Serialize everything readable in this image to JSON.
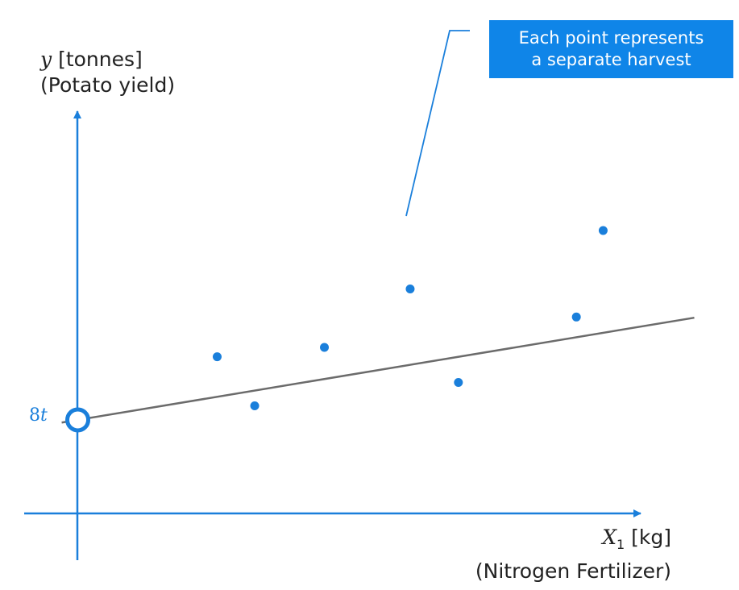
{
  "y_axis": {
    "var": "y",
    "unit": "[tonnes]",
    "desc": "(Potato yield)"
  },
  "x_axis": {
    "var": "X",
    "sub": "1",
    "unit": "[kg]",
    "desc": "(Nitrogen Fertilizer)"
  },
  "intercept": {
    "num": "8",
    "unit": "t"
  },
  "callout": {
    "line1": "Each point represents",
    "line2": "a separate harvest"
  },
  "colors": {
    "accent": "#1a7fdb",
    "regression_line": "#6b6b6b",
    "callout_bg": "#0f85e8"
  },
  "chart_data": {
    "type": "scatter",
    "points": [
      {
        "x": 2.6,
        "y": 9.35
      },
      {
        "x": 3.3,
        "y": 8.3
      },
      {
        "x": 4.6,
        "y": 9.55
      },
      {
        "x": 6.2,
        "y": 10.8
      },
      {
        "x": 7.1,
        "y": 8.8
      },
      {
        "x": 9.3,
        "y": 10.2
      },
      {
        "x": 9.8,
        "y": 12.05
      }
    ],
    "regression": {
      "intercept": 8,
      "slope": 0.19,
      "x_end": 11.5
    },
    "xlim": [
      -1,
      10.5
    ],
    "ylim": [
      6,
      14.6
    ],
    "grid": false
  }
}
